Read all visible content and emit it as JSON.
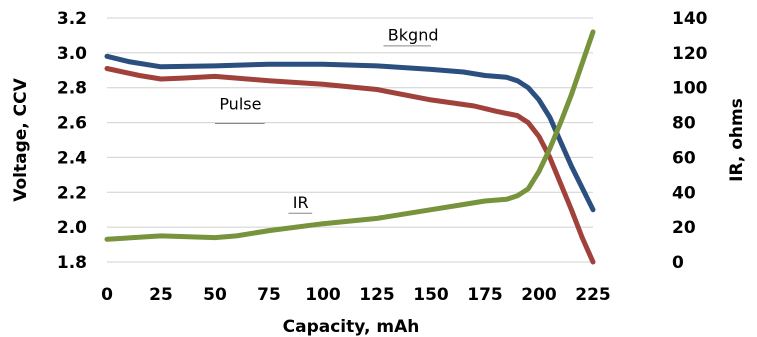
{
  "chart_data": {
    "type": "line",
    "xlabel": "Capacity, mAh",
    "ylabel": "Voltage, CCV",
    "y2label": "IR, ohms",
    "xlim": [
      0,
      225
    ],
    "ylim": [
      1.8,
      3.2
    ],
    "y2lim": [
      0,
      140
    ],
    "x_ticks": [
      "0",
      "25",
      "50",
      "75",
      "100",
      "125",
      "150",
      "175",
      "200",
      "225"
    ],
    "y_ticks": [
      "1.8",
      "2.0",
      "2.2",
      "2.4",
      "2.6",
      "2.8",
      "3.0",
      "3.2"
    ],
    "y2_ticks": [
      "0",
      "20",
      "40",
      "60",
      "80",
      "100",
      "120",
      "140"
    ],
    "grid": "horizontal",
    "series": [
      {
        "name": "Bkgnd",
        "axis": "left",
        "color": "#2b4f7e",
        "x": [
          0,
          10,
          25,
          50,
          75,
          100,
          125,
          150,
          165,
          175,
          185,
          190,
          195,
          200,
          205,
          210,
          215,
          225
        ],
        "y": [
          2.98,
          2.95,
          2.92,
          2.925,
          2.935,
          2.935,
          2.925,
          2.905,
          2.89,
          2.87,
          2.86,
          2.84,
          2.8,
          2.73,
          2.63,
          2.49,
          2.35,
          2.1
        ]
      },
      {
        "name": "Pulse",
        "axis": "left",
        "color": "#a0413c",
        "x": [
          0,
          15,
          25,
          35,
          50,
          60,
          75,
          100,
          125,
          150,
          170,
          180,
          190,
          195,
          200,
          205,
          210,
          215,
          220,
          225
        ],
        "y": [
          2.91,
          2.87,
          2.85,
          2.855,
          2.865,
          2.855,
          2.84,
          2.82,
          2.79,
          2.73,
          2.695,
          2.665,
          2.64,
          2.6,
          2.52,
          2.4,
          2.25,
          2.1,
          1.94,
          1.8
        ]
      },
      {
        "name": "IR",
        "axis": "right",
        "color": "#77933c",
        "x": [
          0,
          25,
          50,
          60,
          75,
          100,
          125,
          150,
          165,
          175,
          185,
          190,
          195,
          200,
          205,
          210,
          215,
          220,
          225
        ],
        "y": [
          13,
          15,
          14,
          15,
          18,
          22,
          25,
          30,
          33,
          35,
          36,
          38,
          42,
          52,
          65,
          80,
          96,
          114,
          132
        ]
      }
    ]
  }
}
